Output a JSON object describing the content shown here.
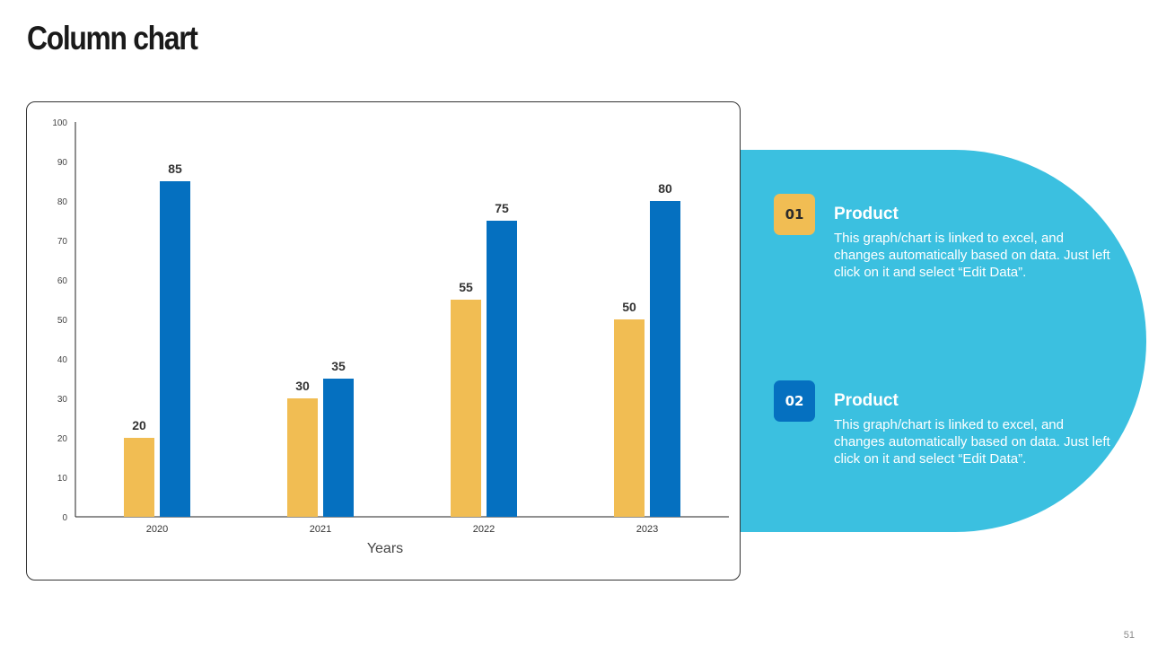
{
  "title": "Column chart",
  "page_number": "51",
  "colors": {
    "series1": "#f1bd53",
    "series2": "#0570c0",
    "panel": "#3bc0e0"
  },
  "legend": [
    {
      "number": "01",
      "title": "Product",
      "desc": "This graph/chart is linked to excel, and changes automatically based on data. Just left click on it and select “Edit Data”."
    },
    {
      "number": "02",
      "title": "Product",
      "desc": "This graph/chart is linked to excel, and changes automatically based on data. Just left click on it and select “Edit Data”."
    }
  ],
  "chart_data": {
    "type": "bar",
    "title": "",
    "xlabel": "Years",
    "ylabel": "",
    "categories": [
      "2020",
      "2021",
      "2022",
      "2023"
    ],
    "series": [
      {
        "name": "Product 01",
        "values": [
          20,
          30,
          55,
          50
        ]
      },
      {
        "name": "Product 02",
        "values": [
          85,
          35,
          75,
          80
        ]
      }
    ],
    "ylim": [
      0,
      100
    ],
    "yticks": [
      0,
      10,
      20,
      30,
      40,
      50,
      60,
      70,
      80,
      90,
      100
    ],
    "grid": false,
    "data_labels": true
  }
}
